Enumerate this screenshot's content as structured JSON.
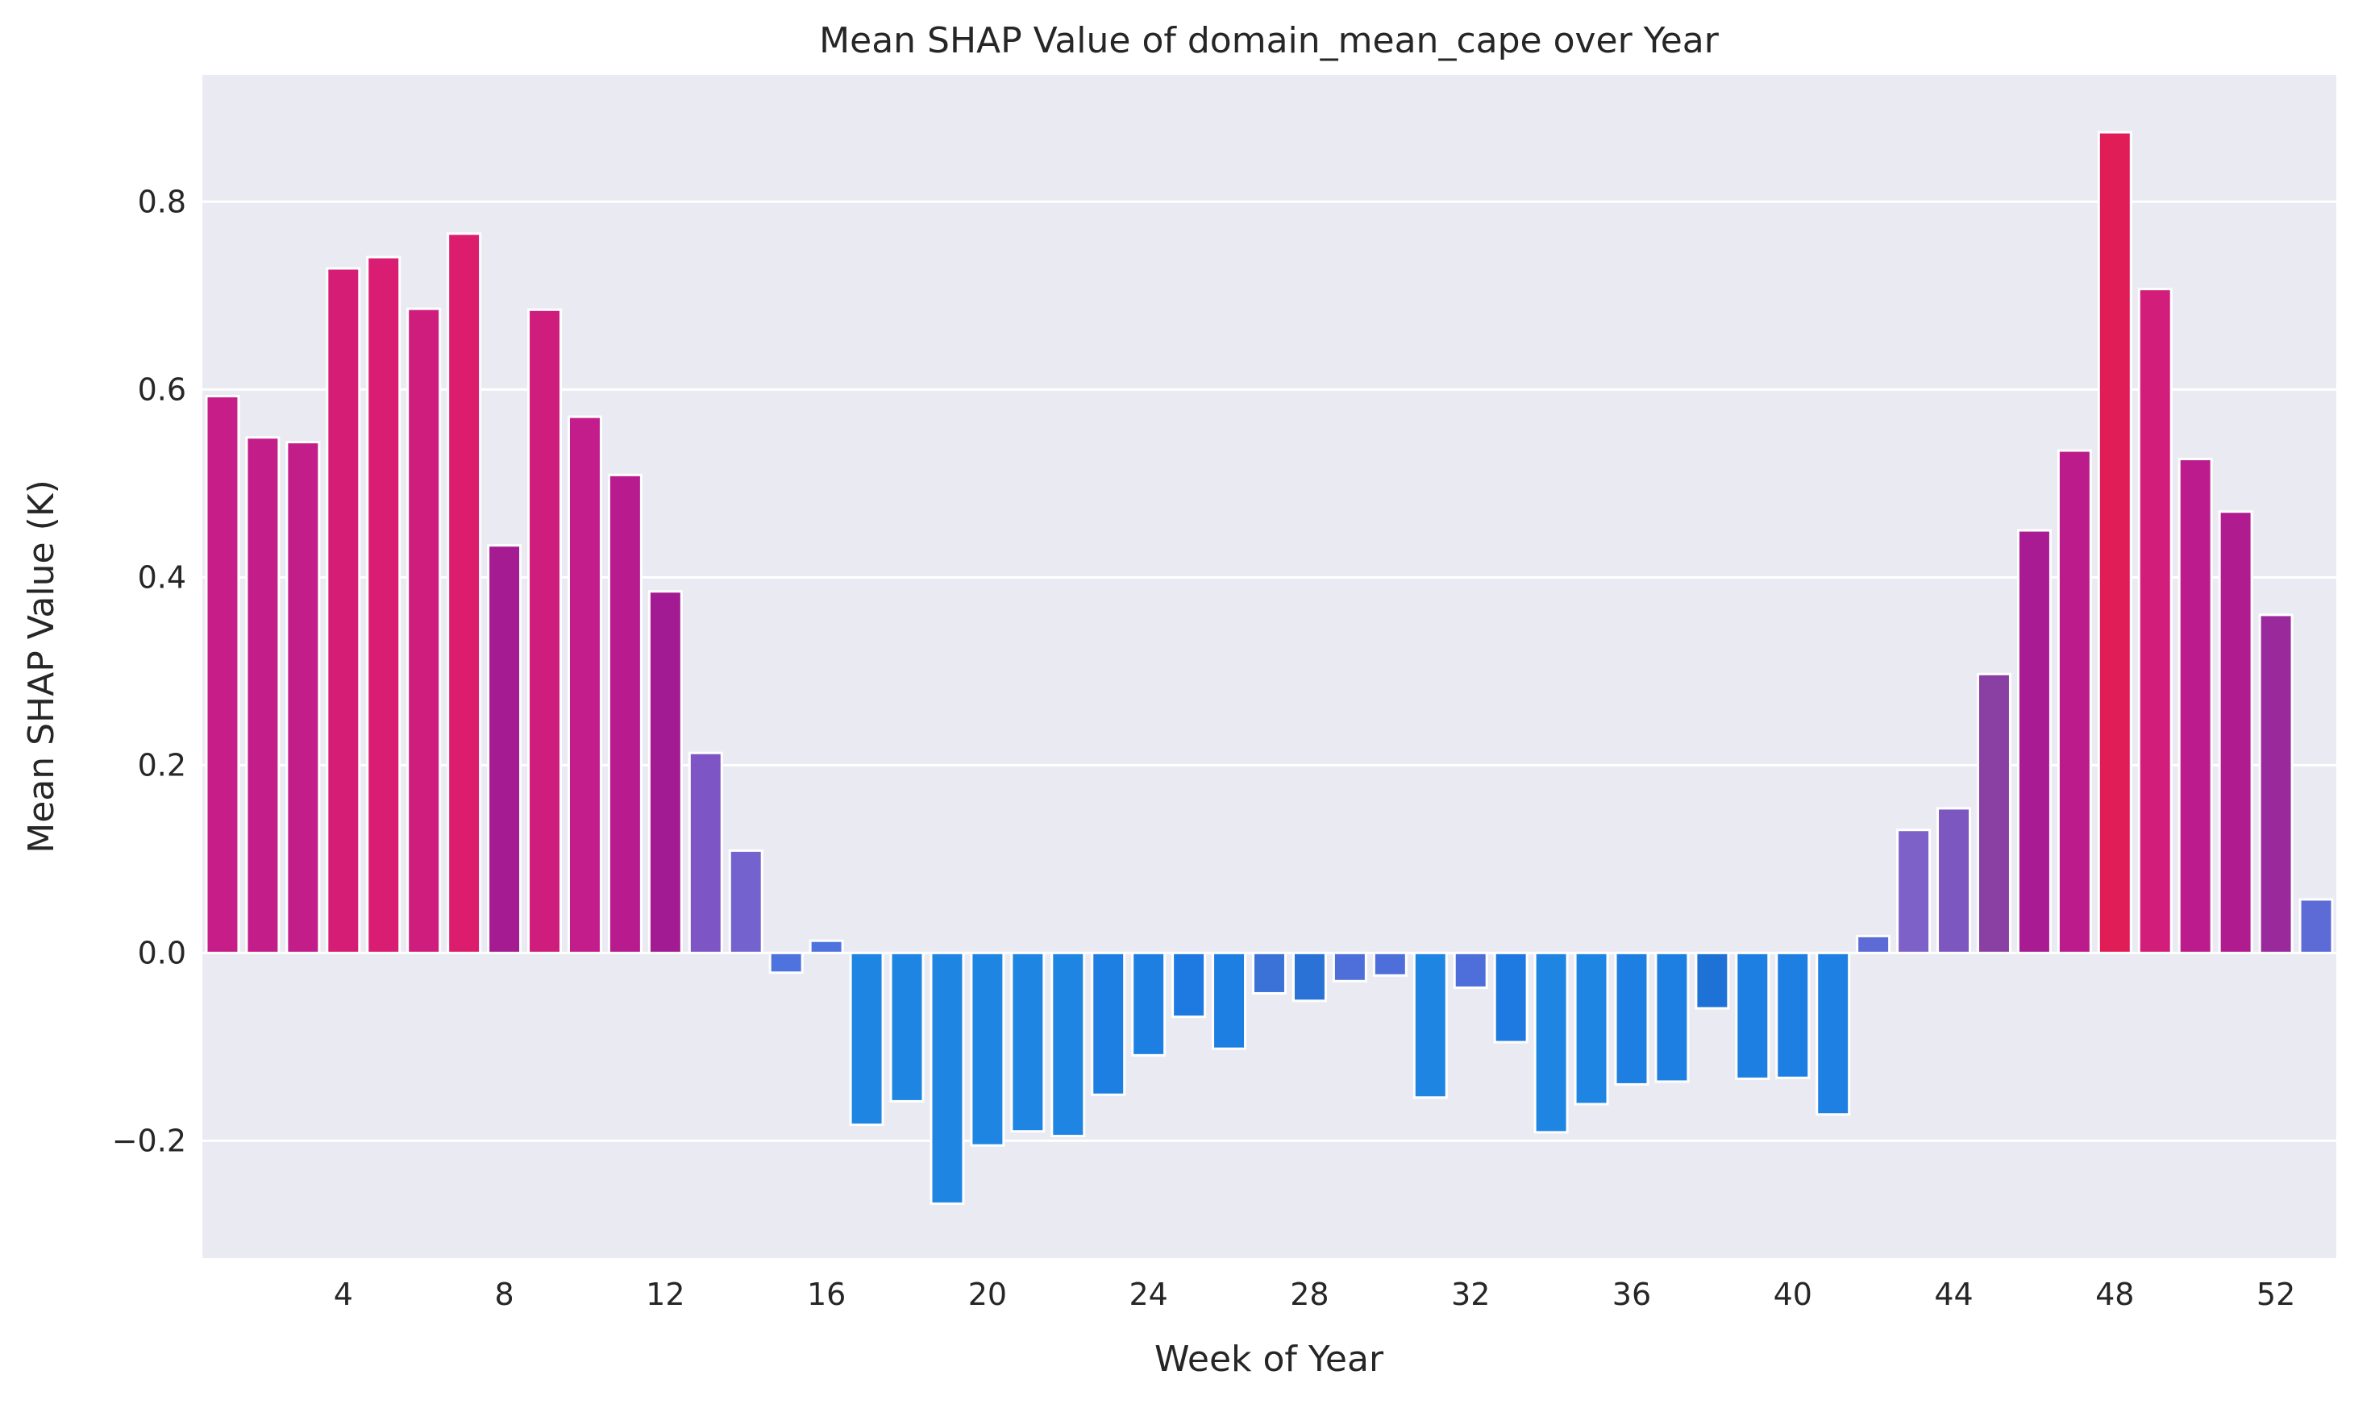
{
  "chart_data": {
    "type": "bar",
    "title": "Mean SHAP Value of domain_mean_cape over Year",
    "xlabel": "Week of Year",
    "ylabel": "Mean SHAP Value (K)",
    "ylim": [
      -0.325,
      0.935
    ],
    "yticks": [
      -0.2,
      0.0,
      0.2,
      0.4,
      0.6,
      0.8
    ],
    "ytick_labels": [
      "−0.2",
      "0.0",
      "0.2",
      "0.4",
      "0.6",
      "0.8"
    ],
    "xticks": [
      4,
      8,
      12,
      16,
      20,
      24,
      28,
      32,
      36,
      40,
      44,
      48,
      52
    ],
    "xtick_labels": [
      "4",
      "8",
      "12",
      "16",
      "20",
      "24",
      "28",
      "32",
      "36",
      "40",
      "44",
      "48",
      "52"
    ],
    "grid": true,
    "background_color": "#eaeaf2",
    "grid_color": "#ffffff",
    "categories": [
      1,
      2,
      3,
      4,
      5,
      6,
      7,
      8,
      9,
      10,
      11,
      12,
      13,
      14,
      15,
      16,
      17,
      18,
      19,
      20,
      21,
      22,
      23,
      24,
      25,
      26,
      27,
      28,
      29,
      30,
      31,
      32,
      33,
      34,
      35,
      36,
      37,
      38,
      39,
      40,
      41,
      42,
      43,
      44,
      45,
      46,
      47,
      48,
      49,
      50,
      51,
      52,
      53
    ],
    "values": [
      0.593,
      0.549,
      0.544,
      0.729,
      0.741,
      0.686,
      0.766,
      0.434,
      0.685,
      0.571,
      0.509,
      0.385,
      0.213,
      0.109,
      -0.021,
      0.013,
      -0.183,
      -0.158,
      -0.267,
      -0.205,
      -0.19,
      -0.195,
      -0.151,
      -0.109,
      -0.068,
      -0.102,
      -0.043,
      -0.051,
      -0.03,
      -0.024,
      -0.154,
      -0.037,
      -0.095,
      -0.191,
      -0.161,
      -0.14,
      -0.137,
      -0.059,
      -0.134,
      -0.133,
      -0.172,
      0.018,
      0.131,
      0.154,
      0.297,
      0.45,
      0.535,
      0.874,
      0.707,
      0.526,
      0.47,
      0.36,
      0.057
    ],
    "bar_colors": [
      "#c61d88",
      "#c31d8a",
      "#c31d8a",
      "#d51d76",
      "#d91d72",
      "#cf1d7d",
      "#dc1d6e",
      "#a51b92",
      "#cf1d7d",
      "#c21d8a",
      "#b81b8e",
      "#a31b92",
      "#7d55c4",
      "#7463cf",
      "#4e73de",
      "#4e73de",
      "#1e86e2",
      "#1e86e2",
      "#1e86e2",
      "#1e86e2",
      "#1e86e2",
      "#1e86e2",
      "#1e7fe2",
      "#1e7fe2",
      "#1e7ae0",
      "#1e7fe2",
      "#3b72d8",
      "#2a72d6",
      "#4e6fd9",
      "#4e6fd9",
      "#1e86e2",
      "#4e6fd9",
      "#1e7ae0",
      "#1e86e2",
      "#1e86e2",
      "#1e7fe2",
      "#1e7fe2",
      "#1e72d6",
      "#1e7fe2",
      "#1e7fe2",
      "#1e80e2",
      "#5c6bd6",
      "#7d60c8",
      "#7d57c0",
      "#8a3fa2",
      "#a81b92",
      "#bb1b8b",
      "#e11d58",
      "#d31d7b",
      "#bb1b8c",
      "#b11b90",
      "#9a2a9c",
      "#5c6bd6"
    ]
  }
}
